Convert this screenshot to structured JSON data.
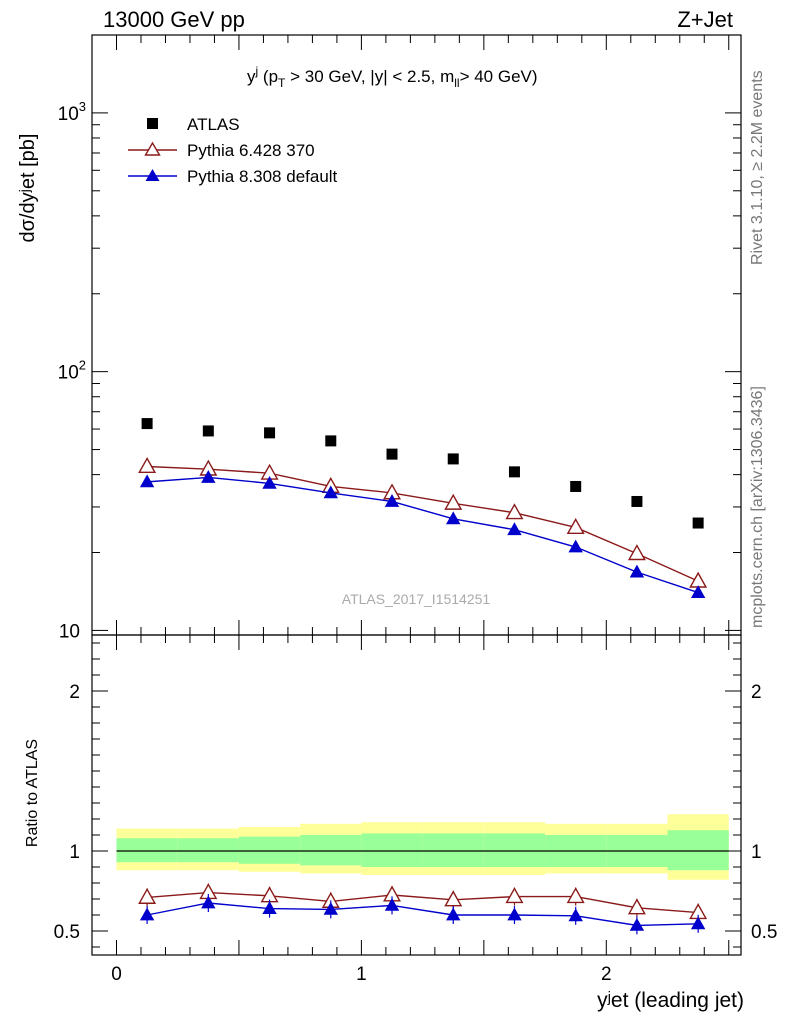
{
  "header": {
    "energy": "13000 GeV pp",
    "process": "Z+Jet"
  },
  "side_labels": {
    "rivet": "Rivet 3.1.10, ≥ 2.2M events",
    "mcplots": "mcplots.cern.ch [arXiv:1306.3436]"
  },
  "watermark": "ATLAS_2017_I1514251",
  "colors": {
    "atlas": "#000000",
    "pythia6": "#8b1a1a",
    "pythia8": "#0000cc",
    "band_inner": "#99ff99",
    "band_outer": "#ffff99"
  },
  "chart_data": [
    {
      "type": "scatter",
      "panel": "main",
      "title": {
        "base": "y",
        "sup": "j",
        "parts": [
          "(p",
          "T",
          " > 30 GeV, |y| < 2.5, m",
          "ll",
          "> 40 GeV)"
        ]
      },
      "ylabel": "dσ/dyʲet [pb]",
      "yscale": "log",
      "ylim": [
        9.6,
        2000
      ],
      "xlim": [
        -0.1,
        2.55
      ],
      "ytick_labels": [
        "10",
        "10",
        "10"
      ],
      "ytick_exponents": [
        "",
        "2",
        "3"
      ],
      "legend_position": "top-left",
      "x": [
        0.125,
        0.375,
        0.625,
        0.875,
        1.125,
        1.375,
        1.625,
        1.875,
        2.125,
        2.375
      ],
      "series": [
        {
          "name": "ATLAS",
          "marker": "square",
          "values": [
            63,
            59,
            58,
            54,
            48,
            46,
            41,
            36,
            31.5,
            26
          ]
        },
        {
          "name": "Pythia 6.428 370",
          "marker": "open-triangle",
          "values": [
            43,
            42,
            40.5,
            36,
            34,
            31,
            28.5,
            25,
            19.8,
            15.5
          ]
        },
        {
          "name": "Pythia 8.308 default",
          "marker": "filled-triangle",
          "values": [
            37.5,
            39,
            37,
            34,
            31.5,
            27,
            24.5,
            21,
            16.8,
            14
          ]
        }
      ]
    },
    {
      "type": "line",
      "panel": "ratio",
      "ylabel": "Ratio to ATLAS",
      "xlabel": "yʲet (leading jet)",
      "ylim": [
        0.35,
        2.35
      ],
      "xlim": [
        -0.1,
        2.55
      ],
      "xtick_labels": [
        "0",
        "1",
        "2"
      ],
      "ytick_labels": [
        "0.5",
        "1",
        "2"
      ],
      "bins": [
        0,
        0.25,
        0.5,
        0.75,
        1.0,
        1.25,
        1.5,
        1.75,
        2.0,
        2.25,
        2.5
      ],
      "x": [
        0.125,
        0.375,
        0.625,
        0.875,
        1.125,
        1.375,
        1.625,
        1.875,
        2.125,
        2.375
      ],
      "band_inner": [
        [
          0.93,
          1.08
        ],
        [
          0.93,
          1.08
        ],
        [
          0.92,
          1.09
        ],
        [
          0.91,
          1.1
        ],
        [
          0.9,
          1.11
        ],
        [
          0.9,
          1.11
        ],
        [
          0.9,
          1.11
        ],
        [
          0.9,
          1.1
        ],
        [
          0.9,
          1.1
        ],
        [
          0.88,
          1.13
        ]
      ],
      "band_outer": [
        [
          0.88,
          1.14
        ],
        [
          0.88,
          1.14
        ],
        [
          0.87,
          1.15
        ],
        [
          0.86,
          1.17
        ],
        [
          0.85,
          1.18
        ],
        [
          0.85,
          1.18
        ],
        [
          0.85,
          1.18
        ],
        [
          0.86,
          1.17
        ],
        [
          0.86,
          1.17
        ],
        [
          0.82,
          1.23
        ]
      ],
      "series": [
        {
          "name": "Pythia 6.428 370",
          "marker": "open-triangle",
          "values": [
            0.71,
            0.74,
            0.72,
            0.685,
            0.725,
            0.695,
            0.715,
            0.715,
            0.645,
            0.615
          ]
        },
        {
          "name": "Pythia 8.308 default",
          "marker": "filled-triangle",
          "values": [
            0.6,
            0.675,
            0.64,
            0.635,
            0.66,
            0.6,
            0.6,
            0.595,
            0.535,
            0.545
          ]
        }
      ]
    }
  ]
}
